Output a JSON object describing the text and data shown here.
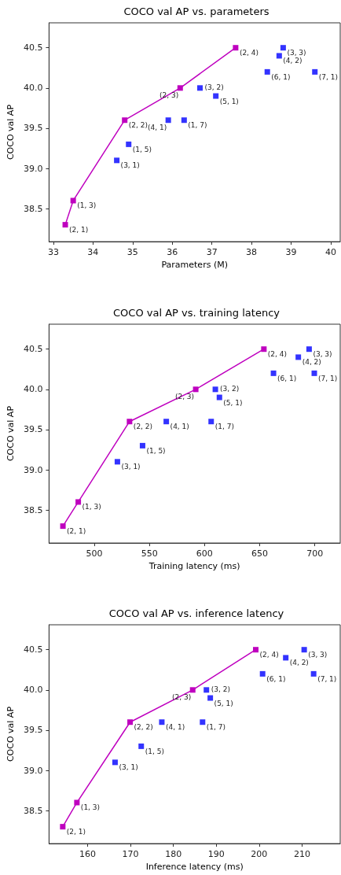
{
  "chart_data": [
    {
      "type": "scatter",
      "title": "COCO val AP vs. parameters",
      "xlabel": "Parameters (M)",
      "ylabel": "COCO val AP",
      "marker": "square",
      "grid": false,
      "xlim": [
        32.89,
        40.24
      ],
      "xticks": [
        33,
        34,
        35,
        36,
        37,
        38,
        39,
        40
      ],
      "ylim": [
        38.09,
        40.81
      ],
      "yticks": [
        {
          "value": 38.5,
          "label": "38.5"
        },
        {
          "value": 39,
          "label": "39.0"
        },
        {
          "value": 39.5,
          "label": "39.5"
        },
        {
          "value": 40,
          "label": "40.0"
        },
        {
          "value": 40.5,
          "label": "40.5"
        }
      ],
      "series": [
        {
          "type": "line",
          "color": "#bf00bf",
          "x": [
            33.3,
            33.5,
            34.8,
            36.2,
            37.6
          ],
          "values": [
            38.3,
            38.6,
            39.6,
            40.0,
            40.5
          ]
        },
        {
          "color": "#0000ff",
          "x": [
            34.6,
            34.9,
            35.9,
            36.3,
            36.7,
            37.1,
            38.4,
            38.7,
            38.8,
            39.6
          ],
          "values": [
            39.1,
            39.3,
            39.6,
            39.6,
            40.0,
            39.9,
            40.2,
            40.4,
            40.5,
            40.2
          ]
        }
      ],
      "annotations": [
        {
          "text": "(2, 1)",
          "x": 33.3,
          "y": 38.3
        },
        {
          "text": "(1, 3)",
          "x": 33.5,
          "y": 38.6
        },
        {
          "text": "(2, 2)",
          "x": 34.8,
          "y": 39.6
        },
        {
          "text": "(2, 3)",
          "x": 36.2,
          "y": 40.0
        },
        {
          "text": "(2, 4)",
          "x": 37.6,
          "y": 40.5
        },
        {
          "text": "(3, 1)",
          "x": 34.6,
          "y": 39.1
        },
        {
          "text": "(1, 5)",
          "x": 34.9,
          "y": 39.3
        },
        {
          "text": "(4, 1)",
          "x": 35.9,
          "y": 39.6
        },
        {
          "text": "(1, 7)",
          "x": 36.3,
          "y": 39.6
        },
        {
          "text": "(3, 2)",
          "x": 36.7,
          "y": 40.0
        },
        {
          "text": "(5, 1)",
          "x": 37.1,
          "y": 39.9
        },
        {
          "text": "(6, 1)",
          "x": 38.4,
          "y": 40.2
        },
        {
          "text": "(4, 2)",
          "x": 38.7,
          "y": 40.4
        },
        {
          "text": "(3, 3)",
          "x": 38.8,
          "y": 40.5
        },
        {
          "text": "(7, 1)",
          "x": 39.6,
          "y": 40.2
        }
      ]
    },
    {
      "type": "scatter",
      "title": "COCO val AP vs. training latency",
      "xlabel": "Training latency (ms)",
      "ylabel": "COCO val AP",
      "marker": "square",
      "grid": false,
      "xlim": [
        459,
        723
      ],
      "xticks": [
        500,
        550,
        600,
        650,
        700
      ],
      "ylim": [
        38.09,
        40.81
      ],
      "yticks": [
        {
          "value": 38.5,
          "label": "38.5"
        },
        {
          "value": 39,
          "label": "39.0"
        },
        {
          "value": 39.5,
          "label": "39.5"
        },
        {
          "value": 40,
          "label": "40.0"
        },
        {
          "value": 40.5,
          "label": "40.5"
        }
      ],
      "series": [
        {
          "type": "line",
          "color": "#bf00bf",
          "x": [
            471.6,
            485.5,
            532,
            592,
            653.8
          ],
          "values": [
            38.3,
            38.6,
            39.6,
            40.0,
            40.5
          ]
        },
        {
          "color": "#0000ff",
          "x": [
            521,
            543.8,
            565.3,
            606,
            609.8,
            613.5,
            662.5,
            685,
            694.8,
            699.5
          ],
          "values": [
            39.1,
            39.3,
            39.6,
            39.6,
            40.0,
            39.9,
            40.2,
            40.4,
            40.5,
            40.2
          ]
        }
      ],
      "annotations": [
        {
          "text": "(2, 1)",
          "x": 471.6,
          "y": 38.3
        },
        {
          "text": "(1, 3)",
          "x": 485.5,
          "y": 38.6
        },
        {
          "text": "(2, 2)",
          "x": 532,
          "y": 39.6
        },
        {
          "text": "(2, 3)",
          "x": 592,
          "y": 40.0
        },
        {
          "text": "(2, 4)",
          "x": 653.8,
          "y": 40.5
        },
        {
          "text": "(3, 1)",
          "x": 521,
          "y": 39.1
        },
        {
          "text": "(1, 5)",
          "x": 543.8,
          "y": 39.3
        },
        {
          "text": "(4, 1)",
          "x": 565.3,
          "y": 39.6
        },
        {
          "text": "(1, 7)",
          "x": 606,
          "y": 39.6
        },
        {
          "text": "(3, 2)",
          "x": 609.8,
          "y": 40.0
        },
        {
          "text": "(5, 1)",
          "x": 613.5,
          "y": 39.9
        },
        {
          "text": "(6, 1)",
          "x": 662.5,
          "y": 40.2
        },
        {
          "text": "(4, 2)",
          "x": 685,
          "y": 40.4
        },
        {
          "text": "(3, 3)",
          "x": 694.8,
          "y": 40.5
        },
        {
          "text": "(7, 1)",
          "x": 699.5,
          "y": 40.2
        }
      ]
    },
    {
      "type": "scatter",
      "title": "COCO val AP vs. inference latency",
      "xlabel": "Inference latency (ms)",
      "ylabel": "COCO val AP",
      "marker": "square",
      "grid": false,
      "xlim": [
        151,
        218.9
      ],
      "xticks": [
        160,
        170,
        180,
        190,
        200,
        210
      ],
      "ylim": [
        38.09,
        40.81
      ],
      "yticks": [
        {
          "value": 38.5,
          "label": "38.5"
        },
        {
          "value": 39,
          "label": "39.0"
        },
        {
          "value": 39.5,
          "label": "39.5"
        },
        {
          "value": 40,
          "label": "40.0"
        },
        {
          "value": 40.5,
          "label": "40.5"
        }
      ],
      "series": [
        {
          "type": "line",
          "color": "#bf00bf",
          "x": [
            154.2,
            157.5,
            169.9,
            184.5,
            199.2
          ],
          "values": [
            38.3,
            38.6,
            39.6,
            40.0,
            40.5
          ]
        },
        {
          "color": "#0000ff",
          "x": [
            166.4,
            172.5,
            177.3,
            186.8,
            187.7,
            188.6,
            200.8,
            206.2,
            210.5,
            212.7
          ],
          "values": [
            39.1,
            39.3,
            39.6,
            39.6,
            40.0,
            39.9,
            40.2,
            40.4,
            40.5,
            40.2
          ]
        }
      ],
      "annotations": [
        {
          "text": "(2, 1)",
          "x": 154.2,
          "y": 38.3
        },
        {
          "text": "(1, 3)",
          "x": 157.5,
          "y": 38.6
        },
        {
          "text": "(2, 2)",
          "x": 169.9,
          "y": 39.6
        },
        {
          "text": "(2, 3)",
          "x": 184.5,
          "y": 40.0
        },
        {
          "text": "(2, 4)",
          "x": 199.2,
          "y": 40.5
        },
        {
          "text": "(3, 1)",
          "x": 166.4,
          "y": 39.1
        },
        {
          "text": "(1, 5)",
          "x": 172.5,
          "y": 39.3
        },
        {
          "text": "(4, 1)",
          "x": 177.3,
          "y": 39.6
        },
        {
          "text": "(1, 7)",
          "x": 186.8,
          "y": 39.6
        },
        {
          "text": "(3, 2)",
          "x": 187.7,
          "y": 40.0
        },
        {
          "text": "(5, 1)",
          "x": 188.6,
          "y": 39.9
        },
        {
          "text": "(6, 1)",
          "x": 200.8,
          "y": 40.2
        },
        {
          "text": "(4, 2)",
          "x": 206.2,
          "y": 40.4
        },
        {
          "text": "(3, 3)",
          "x": 210.5,
          "y": 40.5
        },
        {
          "text": "(7, 1)",
          "x": 212.7,
          "y": 40.2
        }
      ]
    }
  ]
}
